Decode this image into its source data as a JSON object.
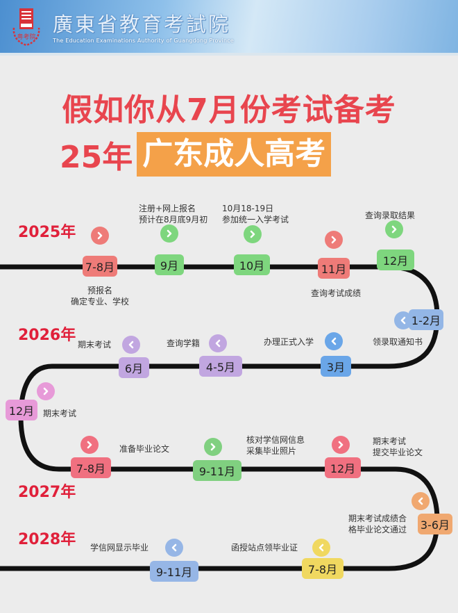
{
  "header": {
    "org_name_cn": "廣東省教育考試院",
    "org_name_en": "The Education Examinations Authority of Guangdong Province",
    "logo_text": "粤考院"
  },
  "title": {
    "line1": "假如你从7月份考试备考",
    "line2_prefix": "25年",
    "line2_highlight": "广东成人高考"
  },
  "colors": {
    "title_red": "#e8454e",
    "highlight_orange": "#f4a149",
    "year_red": "#e0203a"
  },
  "years": [
    "2025年",
    "2026年",
    "2027年",
    "2028年"
  ],
  "milestones": [
    {
      "month": "7-8月",
      "color": "#ee7b78",
      "direction": "right",
      "note": [
        "预报名",
        "确定专业、学校"
      ]
    },
    {
      "month": "9月",
      "color": "#7ed67e",
      "direction": "right",
      "note": [
        "注册+网上报名",
        "预计在8月底9月初"
      ]
    },
    {
      "month": "10月",
      "color": "#7ed67e",
      "direction": "right",
      "note": [
        "10月18-19日",
        "参加统一入学考试"
      ]
    },
    {
      "month": "11月",
      "color": "#ee7b78",
      "direction": "right",
      "note": [
        "查询考试成绩"
      ]
    },
    {
      "month": "12月",
      "color": "#7ed67e",
      "direction": "right",
      "note": [
        "查询录取结果"
      ]
    },
    {
      "month": "1-2月",
      "color": "#93b6e6",
      "direction": "left",
      "note": [
        "领录取通知书"
      ]
    },
    {
      "month": "3月",
      "color": "#6aa6e8",
      "direction": "left",
      "note": [
        "办理正式入学"
      ]
    },
    {
      "month": "4-5月",
      "color": "#c1a6e0",
      "direction": "left",
      "note": [
        "查询学籍"
      ]
    },
    {
      "month": "6月",
      "color": "#c1a6e0",
      "direction": "left",
      "note": [
        "期末考试"
      ]
    },
    {
      "month": "12月",
      "color": "#e79ad8",
      "direction": "right",
      "note": [
        "期末考试"
      ]
    },
    {
      "month": "7-8月",
      "color": "#f07080",
      "direction": "right",
      "note": [
        "准备毕业论文"
      ]
    },
    {
      "month": "9-11月",
      "color": "#80d080",
      "direction": "right",
      "note": [
        "核对学信网信息",
        "采集毕业照片"
      ]
    },
    {
      "month": "12月",
      "color": "#f07080",
      "direction": "right",
      "note": [
        "期末考试",
        "提交毕业论文"
      ]
    },
    {
      "month": "3-6月",
      "color": "#f0a870",
      "direction": "left",
      "note": [
        "期末考试成绩合",
        "格毕业论文通过"
      ]
    },
    {
      "month": "7-8月",
      "color": "#f0d860",
      "direction": "left",
      "note": [
        "函授站点领毕业证"
      ]
    },
    {
      "month": "9-11月",
      "color": "#96b6e6",
      "direction": "left",
      "note": [
        "学信网显示毕业"
      ]
    }
  ]
}
